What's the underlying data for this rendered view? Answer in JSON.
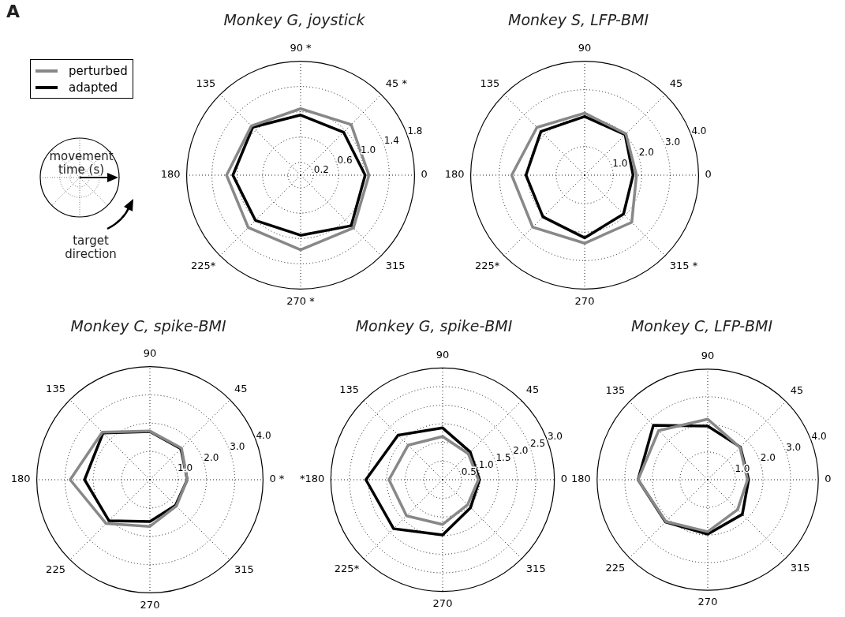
{
  "chart_data": [
    {
      "type": "radar",
      "title": "Monkey G, joystick",
      "categories": [
        "90 *",
        "45 *",
        "0",
        "315",
        "270 *",
        "225*",
        "180",
        "135"
      ],
      "ylim": [
        0,
        1.8
      ],
      "yticks": [
        0.2,
        0.6,
        {
          "value": 1,
          "label": "1.0"
        },
        1.4,
        1.8
      ],
      "grid": true,
      "marker": "none",
      "line_style": "solid",
      "legend": "top left",
      "annotations": [
        "A",
        "movement time (s)",
        "target direction"
      ],
      "series": [
        {
          "name": "perturbed",
          "color": "#888888",
          "values": [
            1.05,
            1.13,
            1.08,
            1.18,
            1.18,
            1.17,
            1.17,
            1.1
          ]
        },
        {
          "name": "adapted",
          "color": "#000000",
          "values": [
            0.95,
            0.96,
            1.02,
            1.13,
            0.95,
            1.01,
            1.07,
            1.07
          ]
        }
      ]
    },
    {
      "type": "radar",
      "title": "Monkey S, LFP-BMI",
      "categories": [
        "90",
        "45",
        "0",
        "315 *",
        "270",
        "225*",
        "180",
        "135"
      ],
      "ylim": [
        0,
        4
      ],
      "yticks": [
        {
          "value": 1,
          "label": "1.0"
        },
        {
          "value": 2,
          "label": "2.0"
        },
        {
          "value": 3,
          "label": "3.0"
        },
        {
          "value": 4,
          "label": "4.0"
        }
      ],
      "grid": true,
      "marker": "none",
      "line_style": "solid",
      "series": [
        {
          "color": "#888888",
          "values": [
            2.18,
            2.05,
            1.82,
            2.34,
            2.39,
            2.58,
            2.56,
            2.37
          ]
        },
        {
          "color": "#000000",
          "values": [
            2.06,
            2.01,
            1.7,
            1.93,
            2.2,
            2.07,
            2.06,
            2.17
          ]
        }
      ]
    },
    {
      "type": "radar",
      "title": "Monkey C, spike-BMI",
      "categories": [
        "90",
        "45",
        "0 *",
        "315",
        "270",
        "225",
        "180",
        "135"
      ],
      "ylim": [
        0,
        4
      ],
      "yticks": [
        {
          "value": 1,
          "label": "1.0"
        },
        {
          "value": 2,
          "label": "2.0"
        },
        {
          "value": 3,
          "label": "3.0"
        },
        {
          "value": 4,
          "label": "4.0"
        }
      ],
      "grid": true,
      "marker": "none",
      "line_style": "solid",
      "series": [
        {
          "color": "#888888",
          "values": [
            1.72,
            1.58,
            1.32,
            1.32,
            1.65,
            2.19,
            2.82,
            2.38
          ]
        },
        {
          "color": "#000000",
          "values": [
            1.7,
            1.55,
            1.32,
            1.28,
            1.48,
            2.05,
            2.31,
            2.34
          ]
        }
      ]
    },
    {
      "type": "radar",
      "title": "Monkey G, spike-BMI",
      "categories": [
        "90",
        "45",
        "0",
        "315",
        "270",
        "225*",
        "*180",
        "135"
      ],
      "ylim": [
        0,
        3
      ],
      "yticks": [
        0.5,
        {
          "value": 1,
          "label": "1.0"
        },
        1.5,
        {
          "value": 2,
          "label": "2.0"
        },
        2.5,
        {
          "value": 3,
          "label": "3.0"
        }
      ],
      "grid": true,
      "marker": "none",
      "line_style": "solid",
      "series": [
        {
          "color": "#888888",
          "values": [
            1.16,
            0.98,
            0.96,
            0.95,
            1.2,
            1.37,
            1.44,
            1.31
          ]
        },
        {
          "color": "#000000",
          "values": [
            1.39,
            1.05,
            0.99,
            1.06,
            1.48,
            1.86,
            2.06,
            1.69
          ]
        }
      ]
    },
    {
      "type": "radar",
      "title": "Monkey C, LFP-BMI",
      "categories": [
        "90",
        "45",
        "0",
        "315",
        "270",
        "225",
        "180",
        "135"
      ],
      "ylim": [
        0,
        4
      ],
      "yticks": [
        {
          "value": 1,
          "label": "1.0"
        },
        {
          "value": 2,
          "label": "2.0"
        },
        {
          "value": 3,
          "label": "3.0"
        },
        {
          "value": 4,
          "label": "4.0"
        }
      ],
      "grid": true,
      "marker": "none",
      "line_style": "solid",
      "series": [
        {
          "color": "#888888",
          "values": [
            2.19,
            1.65,
            1.44,
            1.53,
            1.88,
            2.14,
            2.52,
            2.51
          ]
        },
        {
          "color": "#000000",
          "values": [
            1.94,
            1.67,
            1.48,
            1.77,
            1.97,
            2.16,
            2.52,
            2.78
          ]
        }
      ]
    }
  ]
}
